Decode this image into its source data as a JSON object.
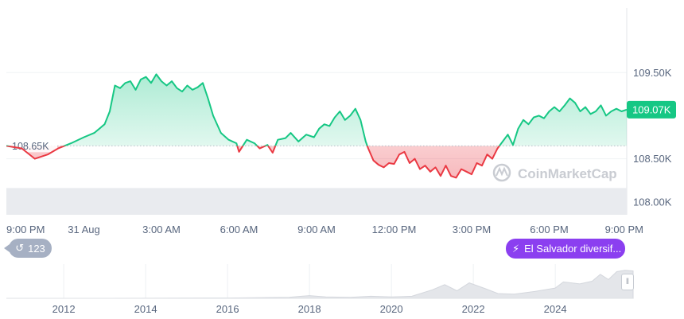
{
  "chart_data": {
    "type": "area",
    "baseline": 108.65,
    "baseline_label": "108.65K",
    "current_label": "109.07K",
    "ylim": [
      107.85,
      110.25
    ],
    "y_ticks": [
      {
        "value": 109.5,
        "label": "109.50K"
      },
      {
        "value": 108.5,
        "label": "108.50K"
      },
      {
        "value": 108.0,
        "label": "108.00K"
      }
    ],
    "x_range_hours": [
      0,
      24
    ],
    "x_ticks": [
      {
        "t": 0,
        "label": "9:00 PM"
      },
      {
        "t": 3,
        "label": "31 Aug"
      },
      {
        "t": 6,
        "label": "3:00 AM"
      },
      {
        "t": 9,
        "label": "6:00 AM"
      },
      {
        "t": 12,
        "label": "9:00 AM"
      },
      {
        "t": 15,
        "label": "12:00 PM"
      },
      {
        "t": 18,
        "label": "3:00 PM"
      },
      {
        "t": 21,
        "label": "6:00 PM"
      },
      {
        "t": 24,
        "label": "9:00 PM"
      }
    ],
    "series": [
      {
        "points": [
          [
            0.0,
            108.65
          ],
          [
            0.6,
            108.62
          ],
          [
            1.1,
            108.5
          ],
          [
            1.6,
            108.55
          ],
          [
            2.0,
            108.62
          ],
          [
            2.5,
            108.68
          ],
          [
            3.0,
            108.75
          ],
          [
            3.4,
            108.8
          ],
          [
            3.8,
            108.9
          ],
          [
            4.0,
            109.05
          ],
          [
            4.2,
            109.35
          ],
          [
            4.4,
            109.32
          ],
          [
            4.6,
            109.38
          ],
          [
            4.8,
            109.4
          ],
          [
            5.0,
            109.3
          ],
          [
            5.2,
            109.42
          ],
          [
            5.4,
            109.45
          ],
          [
            5.6,
            109.38
          ],
          [
            5.8,
            109.48
          ],
          [
            6.0,
            109.4
          ],
          [
            6.2,
            109.35
          ],
          [
            6.4,
            109.4
          ],
          [
            6.6,
            109.32
          ],
          [
            6.8,
            109.28
          ],
          [
            7.0,
            109.35
          ],
          [
            7.2,
            109.3
          ],
          [
            7.4,
            109.33
          ],
          [
            7.6,
            109.38
          ],
          [
            7.8,
            109.2
          ],
          [
            8.0,
            109.0
          ],
          [
            8.3,
            108.8
          ],
          [
            8.6,
            108.72
          ],
          [
            8.9,
            108.68
          ],
          [
            9.0,
            108.58
          ],
          [
            9.3,
            108.72
          ],
          [
            9.6,
            108.68
          ],
          [
            9.8,
            108.62
          ],
          [
            10.1,
            108.66
          ],
          [
            10.3,
            108.57
          ],
          [
            10.5,
            108.72
          ],
          [
            10.8,
            108.74
          ],
          [
            11.0,
            108.8
          ],
          [
            11.3,
            108.7
          ],
          [
            11.6,
            108.78
          ],
          [
            11.9,
            108.75
          ],
          [
            12.1,
            108.85
          ],
          [
            12.3,
            108.9
          ],
          [
            12.5,
            108.88
          ],
          [
            12.7,
            108.98
          ],
          [
            12.9,
            109.05
          ],
          [
            13.1,
            108.95
          ],
          [
            13.3,
            109.0
          ],
          [
            13.5,
            109.08
          ],
          [
            13.7,
            108.95
          ],
          [
            13.9,
            108.7
          ],
          [
            14.0,
            108.62
          ],
          [
            14.2,
            108.48
          ],
          [
            14.4,
            108.43
          ],
          [
            14.6,
            108.4
          ],
          [
            14.8,
            108.45
          ],
          [
            15.0,
            108.44
          ],
          [
            15.2,
            108.55
          ],
          [
            15.4,
            108.58
          ],
          [
            15.6,
            108.45
          ],
          [
            15.8,
            108.5
          ],
          [
            16.0,
            108.38
          ],
          [
            16.2,
            108.42
          ],
          [
            16.4,
            108.35
          ],
          [
            16.6,
            108.4
          ],
          [
            16.8,
            108.3
          ],
          [
            17.0,
            108.42
          ],
          [
            17.2,
            108.3
          ],
          [
            17.4,
            108.28
          ],
          [
            17.6,
            108.38
          ],
          [
            17.8,
            108.35
          ],
          [
            18.0,
            108.32
          ],
          [
            18.2,
            108.45
          ],
          [
            18.4,
            108.42
          ],
          [
            18.6,
            108.55
          ],
          [
            18.8,
            108.5
          ],
          [
            19.0,
            108.62
          ],
          [
            19.2,
            108.7
          ],
          [
            19.4,
            108.78
          ],
          [
            19.6,
            108.66
          ],
          [
            19.8,
            108.85
          ],
          [
            20.0,
            108.95
          ],
          [
            20.2,
            108.9
          ],
          [
            20.4,
            108.98
          ],
          [
            20.6,
            109.0
          ],
          [
            20.8,
            108.97
          ],
          [
            21.0,
            109.05
          ],
          [
            21.2,
            109.1
          ],
          [
            21.4,
            109.05
          ],
          [
            21.6,
            109.12
          ],
          [
            21.8,
            109.2
          ],
          [
            22.0,
            109.15
          ],
          [
            22.2,
            109.05
          ],
          [
            22.4,
            109.1
          ],
          [
            22.6,
            109.02
          ],
          [
            22.8,
            109.05
          ],
          [
            23.0,
            109.12
          ],
          [
            23.2,
            109.0
          ],
          [
            23.4,
            109.05
          ],
          [
            23.6,
            109.08
          ],
          [
            23.8,
            109.05
          ],
          [
            24.0,
            109.07
          ]
        ]
      }
    ],
    "colors": {
      "up": "#16c784",
      "down": "#ea3943",
      "text": "#58667e",
      "grid": "#eff2f5",
      "label_bg": "#16c784"
    },
    "watermark": "CoinMarketCap",
    "volume": {
      "level": 0.55
    },
    "navigator": {
      "x_range": [
        2010.6,
        2025.9
      ],
      "year_labels": [
        "2012",
        "2014",
        "2016",
        "2018",
        "2020",
        "2022",
        "2024"
      ],
      "years": [
        2012,
        2014,
        2016,
        2018,
        2020,
        2022,
        2024
      ],
      "profile": [
        [
          2010.6,
          0.0
        ],
        [
          2013.0,
          0.0
        ],
        [
          2016.0,
          0.01
        ],
        [
          2017.5,
          0.03
        ],
        [
          2018.0,
          0.08
        ],
        [
          2018.4,
          0.04
        ],
        [
          2019.0,
          0.03
        ],
        [
          2019.5,
          0.06
        ],
        [
          2020.0,
          0.04
        ],
        [
          2020.5,
          0.06
        ],
        [
          2021.0,
          0.25
        ],
        [
          2021.3,
          0.4
        ],
        [
          2021.6,
          0.22
        ],
        [
          2021.9,
          0.45
        ],
        [
          2022.3,
          0.28
        ],
        [
          2022.6,
          0.14
        ],
        [
          2023.0,
          0.12
        ],
        [
          2023.5,
          0.2
        ],
        [
          2024.0,
          0.3
        ],
        [
          2024.2,
          0.48
        ],
        [
          2024.6,
          0.42
        ],
        [
          2024.9,
          0.5
        ],
        [
          2025.1,
          0.7
        ],
        [
          2025.3,
          0.55
        ],
        [
          2025.5,
          0.78
        ],
        [
          2025.7,
          0.82
        ],
        [
          2025.9,
          0.8
        ]
      ]
    }
  },
  "badges": {
    "events_count": "123",
    "news_text": "El Salvador diversif..."
  }
}
